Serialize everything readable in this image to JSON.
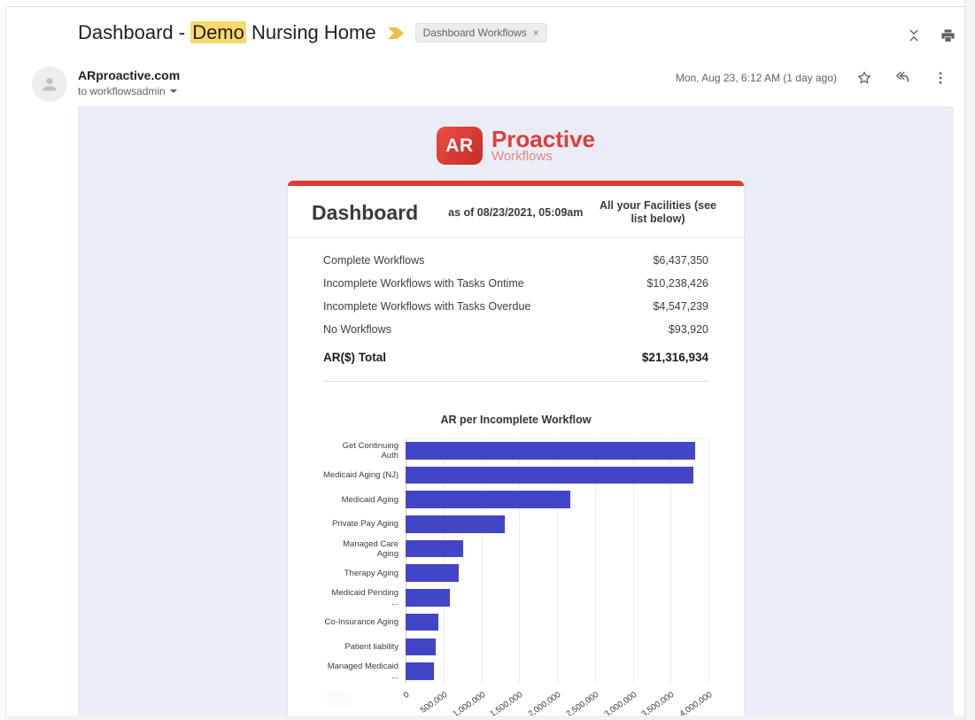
{
  "header": {
    "subject_prefix": "Dashboard - ",
    "subject_highlight": "Demo",
    "subject_suffix": " Nursing Home",
    "label_chip": "Dashboard Workflows",
    "chip_close": "×"
  },
  "message": {
    "sender": "ARproactive.com",
    "recipient_line": "to workflowsadmin",
    "timestamp": "Mon, Aug 23, 6:12 AM (1 day ago)"
  },
  "email_body": {
    "logo": {
      "badge": "AR",
      "name": "Proactive",
      "tagline": "Workflows"
    },
    "card_header": {
      "title": "Dashboard",
      "as_of": "as of 08/23/2021, 05:09am",
      "scope": "All your Facilities (see list below)"
    },
    "summary_rows": [
      {
        "label": "Complete Workflows",
        "value": "$6,437,350"
      },
      {
        "label": "Incomplete Workflows with Tasks Ontime",
        "value": "$10,238,426"
      },
      {
        "label": "Incomplete Workflows with Tasks Overdue",
        "value": "$4,547,239"
      },
      {
        "label": "No Workflows",
        "value": "$93,920"
      }
    ],
    "total_row": {
      "label": "AR($) Total",
      "value": "$21,316,934"
    }
  },
  "chart_data": {
    "type": "bar",
    "orientation": "horizontal",
    "title": "AR per Incomplete Workflow",
    "categories": [
      "Get Continuing Auth",
      "Medicaid Aging (NJ)",
      "Medicaid Aging",
      "Private Pay Aging",
      "Managed Care Aging",
      "Therapy Aging",
      "Medicaid Pending ...",
      "Co-Insurance Aging",
      "Patient liability",
      "Managed Medicaid ..."
    ],
    "values": [
      3820000,
      3800000,
      2170000,
      1310000,
      760000,
      700000,
      590000,
      430000,
      400000,
      370000
    ],
    "xlabel": "",
    "ylabel": "",
    "xlim": [
      0,
      4000000
    ],
    "x_tick_values": [
      0,
      500000,
      1000000,
      1500000,
      2000000,
      2500000,
      3000000,
      3500000,
      4000000
    ],
    "x_tick_labels": [
      "0",
      "500,000",
      "1,000,000",
      "1,500,000",
      "2,000,000",
      "2,500,000",
      "3,000,000",
      "3,500,000",
      "4,000,000"
    ],
    "bar_color": "#4245c8",
    "grid": true,
    "legend": false
  },
  "colors": {
    "accent_red": "#e03a33",
    "body_bg": "#eaedf6",
    "highlight_yellow": "#f7d96e",
    "icon_gray": "#5f6368"
  }
}
